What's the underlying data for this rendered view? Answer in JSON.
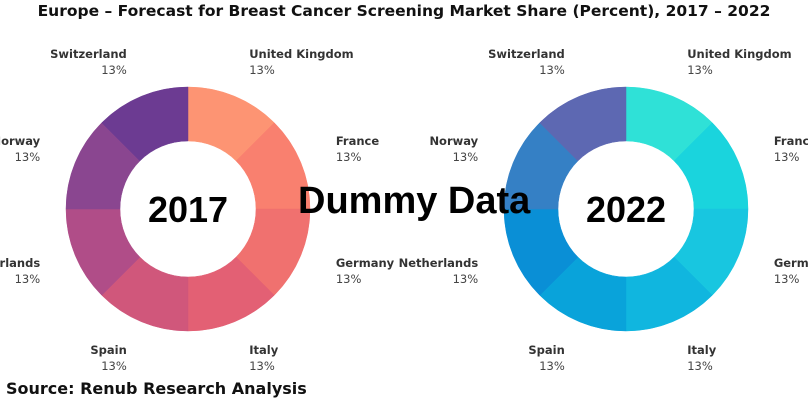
{
  "title": "Europe – Forecast for Breast Cancer Screening Market Share (Percent), 2017 – 2022",
  "watermark": "Dummy Data",
  "source": "Source: Renub Research Analysis",
  "chart_data": [
    {
      "type": "pie",
      "variant": "donut",
      "center_label": "2017",
      "categories": [
        "United Kingdom",
        "France",
        "Germany",
        "Italy",
        "Spain",
        "Netherlands",
        "Norway",
        "Switzerland"
      ],
      "values": [
        13,
        13,
        13,
        13,
        13,
        13,
        13,
        13
      ],
      "value_labels": [
        "13%",
        "13%",
        "13%",
        "13%",
        "13%",
        "13%",
        "13%",
        "13%"
      ],
      "colors": [
        "#fd9473",
        "#f9806f",
        "#f0716f",
        "#e36074",
        "#d0577b",
        "#b04d88",
        "#8a4690",
        "#6c3b92"
      ]
    },
    {
      "type": "pie",
      "variant": "donut",
      "center_label": "2022",
      "categories": [
        "United Kingdom",
        "France",
        "Germany",
        "Italy",
        "Spain",
        "Netherlands",
        "Norway",
        "Switzerland"
      ],
      "values": [
        13,
        13,
        13,
        13,
        13,
        13,
        13,
        13
      ],
      "value_labels": [
        "13%",
        "13%",
        "13%",
        "13%",
        "13%",
        "13%",
        "13%",
        "13%"
      ],
      "colors": [
        "#2fe1d7",
        "#1ad4dd",
        "#18c6e0",
        "#10b6df",
        "#09a3da",
        "#0a8fd6",
        "#3580c5",
        "#5d68b2"
      ]
    }
  ]
}
